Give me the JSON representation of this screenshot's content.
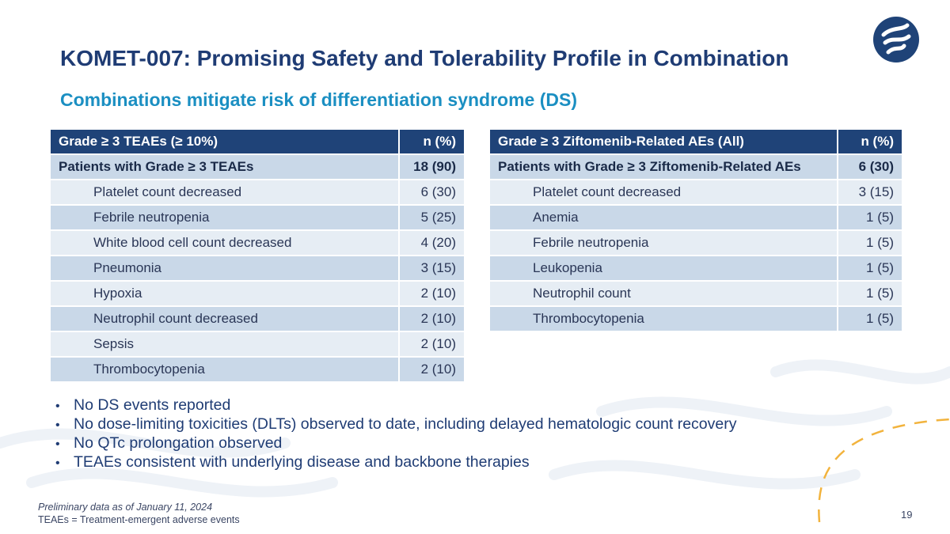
{
  "slide": {
    "title": "KOMET-007: Promising Safety and Tolerability Profile in Combination",
    "subtitle": "Combinations mitigate risk of differentiation syndrome (DS)",
    "page_number": "19"
  },
  "left_table": {
    "header": [
      "Grade ≥ 3 TEAEs (≥ 10%)",
      "n (%)"
    ],
    "total": [
      "Patients with Grade ≥ 3 TEAEs",
      "18 (90)"
    ],
    "rows": [
      [
        "Platelet count decreased",
        "6 (30)"
      ],
      [
        "Febrile neutropenia",
        "5 (25)"
      ],
      [
        "White blood cell count decreased",
        "4 (20)"
      ],
      [
        "Pneumonia",
        "3 (15)"
      ],
      [
        "Hypoxia",
        "2 (10)"
      ],
      [
        "Neutrophil count decreased",
        "2 (10)"
      ],
      [
        "Sepsis",
        "2 (10)"
      ],
      [
        "Thrombocytopenia",
        "2 (10)"
      ]
    ]
  },
  "right_table": {
    "header": [
      "Grade ≥ 3 Ziftomenib-Related AEs (All)",
      "n (%)"
    ],
    "total": [
      "Patients with Grade ≥ 3 Ziftomenib-Related AEs",
      "6 (30)"
    ],
    "rows": [
      [
        "Platelet count decreased",
        "3 (15)"
      ],
      [
        "Anemia",
        "1 (5)"
      ],
      [
        "Febrile neutropenia",
        "1 (5)"
      ],
      [
        "Leukopenia",
        "1 (5)"
      ],
      [
        "Neutrophil count",
        "1 (5)"
      ],
      [
        "Thrombocytopenia",
        "1 (5)"
      ]
    ]
  },
  "bullets": [
    "No DS events reported",
    "No dose-limiting toxicities (DLTs) observed to date, including delayed hematologic count recovery",
    "No QTc prolongation observed",
    "TEAEs consistent with underlying disease and backbone therapies"
  ],
  "footnotes": {
    "line1": "Preliminary data as of January 11, 2024",
    "line2": "TEAEs = Treatment-emergent adverse events"
  },
  "colors": {
    "title": "#1f3c74",
    "subtitle": "#1b8fc2",
    "table_header": "#1f4378",
    "row_dark": "#c9d8e8",
    "row_light": "#e6edf4",
    "accent_dash": "#f2b33d"
  }
}
